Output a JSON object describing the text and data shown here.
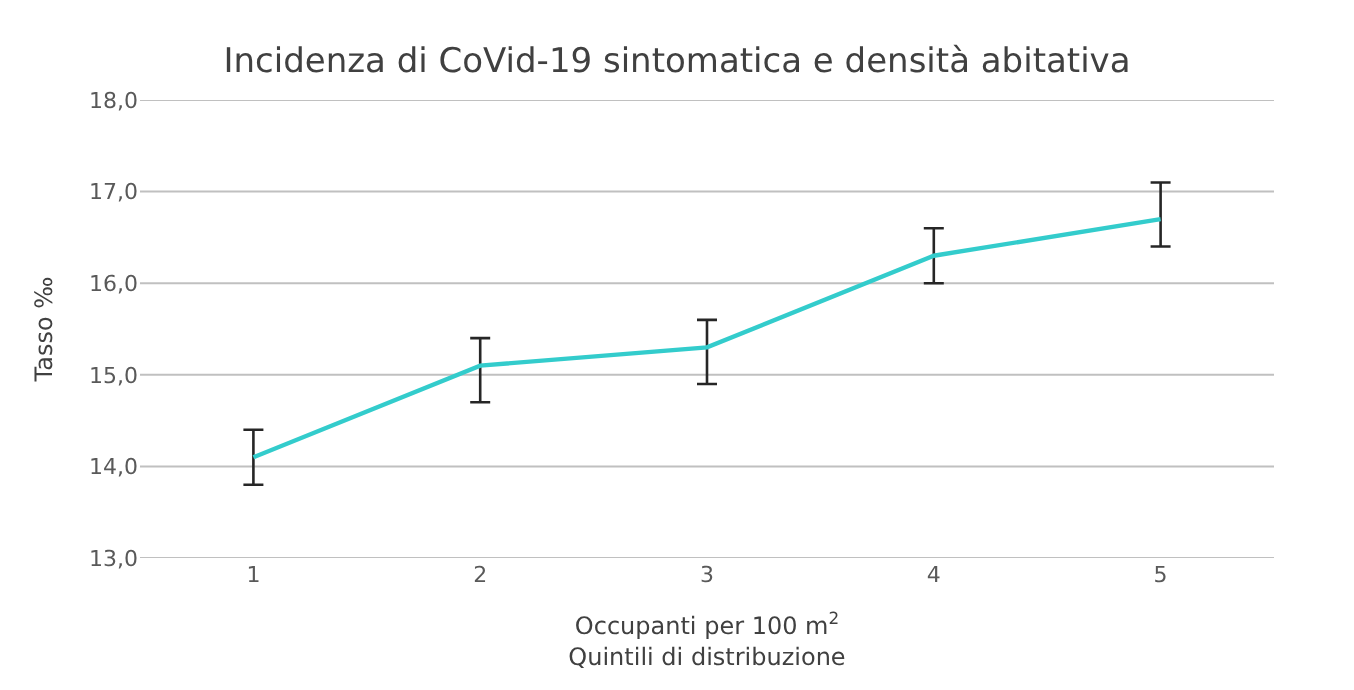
{
  "chart_data": {
    "type": "line",
    "title": "Incidenza di CoVid-19 sintomatica e densità abitativa",
    "categories": [
      "1",
      "2",
      "3",
      "4",
      "5"
    ],
    "series": [
      {
        "color": "#33cccc",
        "values": [
          14.1,
          15.1,
          15.3,
          16.3,
          16.7
        ],
        "errors": [
          [
            13.8,
            14.4
          ],
          [
            14.7,
            15.4
          ],
          [
            14.9,
            15.6
          ],
          [
            16.0,
            16.6
          ],
          [
            16.4,
            17.1
          ]
        ]
      }
    ],
    "xlabel": "Occupanti per 100 m$^{2}$\nQuintili di distribuzione",
    "ylabel": "Tasso ‰",
    "ylim": [
      13.0,
      18.0
    ],
    "yticks": [
      {
        "value": 13,
        "label": "13,0"
      },
      {
        "value": 14,
        "label": "14,0"
      },
      {
        "value": 15,
        "label": "15,0"
      },
      {
        "value": 16,
        "label": "16,0"
      },
      {
        "value": 17,
        "label": "17,0"
      },
      {
        "value": 18,
        "label": "18,0"
      }
    ],
    "grid": "y",
    "marker": "none",
    "line_style": "solid"
  }
}
